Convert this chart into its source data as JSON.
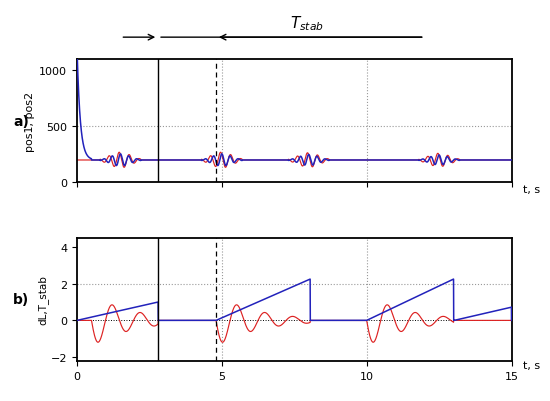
{
  "subplot_a_label": "a)",
  "subplot_b_label": "b)",
  "ylabel_a": "pos1, pos2",
  "ylabel_b": "dL,T_stab",
  "xlabel": "t, s",
  "xlim": [
    0,
    15
  ],
  "ylim_a": [
    0,
    1100
  ],
  "ylim_b": [
    -2.2,
    4.5
  ],
  "yticks_a": [
    0,
    500,
    1000
  ],
  "yticks_b": [
    -2,
    0,
    2,
    4
  ],
  "xticks": [
    0,
    5,
    10,
    15
  ],
  "grid_color": "#999999",
  "vline_solid_x": 2.8,
  "vline_dash_x": 4.8,
  "vline_dash2_x": 10.0,
  "color_blue": "#2222bb",
  "color_red": "#dd2222",
  "color_black": "#000000",
  "Tstab_label": "$T_{stab}$"
}
